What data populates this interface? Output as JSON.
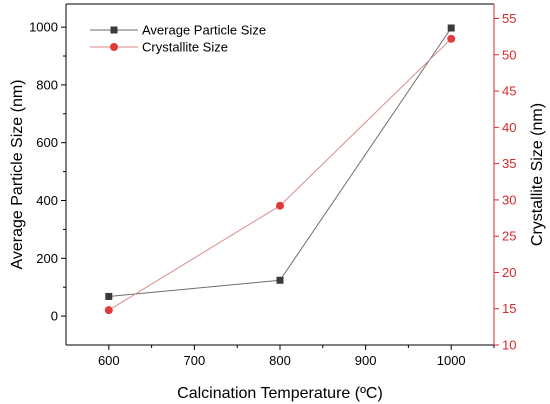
{
  "chart_data": {
    "type": "line",
    "title": "",
    "xlabel": "Calcination Temperature (ºC)",
    "ylabel_left": "Average Particle Size (nm)",
    "ylabel_right": "Crystallite Size (nm)",
    "xlim": [
      550,
      1050
    ],
    "ylim_left": [
      -100,
      1080
    ],
    "ylim_right": [
      10,
      57
    ],
    "x_ticks": [
      600,
      700,
      800,
      900,
      1000
    ],
    "y_left_ticks": [
      0,
      200,
      400,
      600,
      800,
      1000
    ],
    "y_right_ticks": [
      10,
      15,
      20,
      25,
      30,
      35,
      40,
      45,
      50,
      55
    ],
    "grid": false,
    "legend_position": "top-left",
    "series": [
      {
        "name": "Average Particle Size",
        "axis": "left",
        "marker": "square",
        "color": "#3a3a3a",
        "line_color": "#6e6e6e",
        "x": [
          600,
          800,
          1000
        ],
        "y": [
          68,
          124,
          997
        ]
      },
      {
        "name": "Crystallite Size",
        "axis": "right",
        "marker": "circle",
        "color": "#e03a3a",
        "line_color": "#d98a8a",
        "x": [
          600,
          800,
          1000
        ],
        "y": [
          14.8,
          29.2,
          52.2
        ]
      }
    ]
  }
}
